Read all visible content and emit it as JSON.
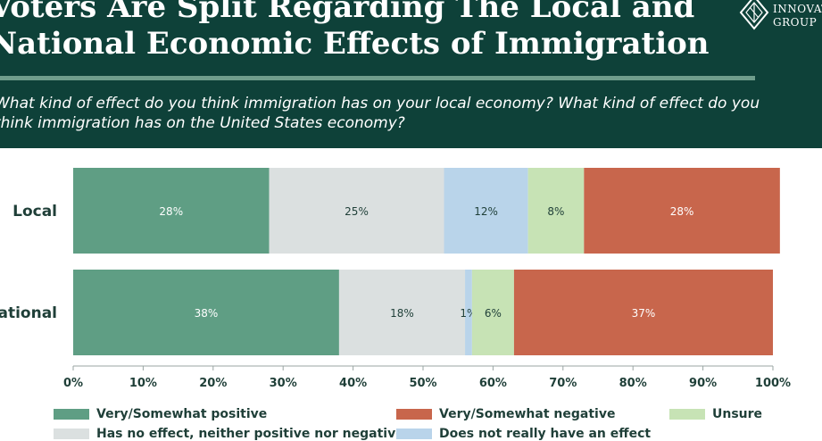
{
  "header": {
    "title": "Voters Are Split Regarding The Local and National Economic Effects of Immigration",
    "subtitle": "What kind of effect do you think immigration has on your local economy? What kind of effect do you think immigration has on the United States economy?",
    "logo_text": "INNOVATION GROUP"
  },
  "colors": {
    "header_bg": "#0e4139",
    "positive": "#5f9e84",
    "neutral": "#dbe0e0",
    "no_effect": "#b9d4ea",
    "unsure": "#c7e3b5",
    "negative": "#c8664c"
  },
  "chart_data": {
    "type": "bar",
    "orientation": "horizontal",
    "stacked": true,
    "categories": [
      "Local",
      "National"
    ],
    "series": [
      {
        "name": "Very/Somewhat positive",
        "values": [
          28,
          38
        ],
        "labels": [
          "28%",
          "38%"
        ]
      },
      {
        "name": "Has no effect, neither positive nor negative",
        "values": [
          25,
          18
        ],
        "labels": [
          "25%",
          "18%"
        ]
      },
      {
        "name": "Does not really have an effect",
        "values": [
          12,
          1
        ],
        "labels": [
          "12%",
          "1%"
        ]
      },
      {
        "name": "Unsure",
        "values": [
          8,
          6
        ],
        "labels": [
          "8%",
          "6%"
        ]
      },
      {
        "name": "Very/Somewhat negative",
        "values": [
          28,
          37
        ],
        "labels": [
          "28%",
          "37%"
        ]
      }
    ],
    "xlim": [
      0,
      100
    ],
    "x_ticks": [
      "0%",
      "10%",
      "20%",
      "30%",
      "40%",
      "50%",
      "60%",
      "70%",
      "80%",
      "90%",
      "100%"
    ],
    "grid": false,
    "legend": "bottom"
  },
  "legend": [
    {
      "label": "Very/Somewhat positive",
      "color_key": "positive"
    },
    {
      "label": "Very/Somewhat negative",
      "color_key": "negative"
    },
    {
      "label": "Unsure",
      "color_key": "unsure"
    },
    {
      "label": "Has no effect, neither positive nor negative",
      "color_key": "neutral"
    },
    {
      "label": "Does not really have an effect",
      "color_key": "no_effect"
    }
  ]
}
